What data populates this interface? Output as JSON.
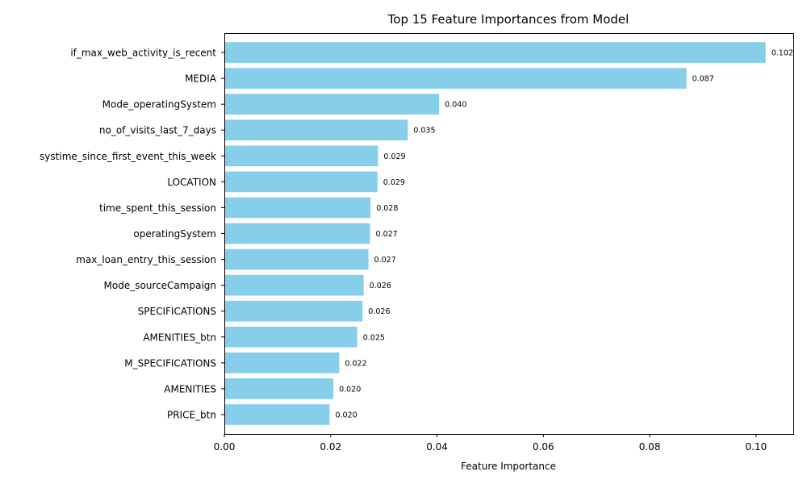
{
  "chart_data": {
    "type": "bar",
    "orientation": "horizontal",
    "title": "Top 15 Feature Importances from Model",
    "xlabel": "Feature Importance",
    "ylabel": "",
    "xlim": [
      0,
      0.107
    ],
    "xticks": [
      "0.00",
      "0.02",
      "0.04",
      "0.06",
      "0.08",
      "0.10"
    ],
    "grid": false,
    "bar_color": "#87CEEB",
    "categories": [
      "if_max_web_activity_is_recent",
      "MEDIA",
      "Mode_operatingSystem",
      "no_of_visits_last_7_days",
      "systime_since_first_event_this_week",
      "LOCATION",
      "time_spent_this_session",
      "operatingSystem",
      "max_loan_entry_this_session",
      "Mode_sourceCampaign",
      "SPECIFICATIONS",
      "AMENITIES_btn",
      "M_SPECIFICATIONS",
      "AMENITIES",
      "PRICE_btn"
    ],
    "values": [
      0.1018,
      0.0869,
      0.0404,
      0.0345,
      0.0289,
      0.0288,
      0.0275,
      0.0274,
      0.0271,
      0.0262,
      0.026,
      0.025,
      0.0216,
      0.0205,
      0.0198
    ],
    "value_labels": [
      "0.102",
      "0.087",
      "0.040",
      "0.035",
      "0.029",
      "0.029",
      "0.028",
      "0.027",
      "0.027",
      "0.026",
      "0.026",
      "0.025",
      "0.022",
      "0.020",
      "0.020"
    ]
  }
}
